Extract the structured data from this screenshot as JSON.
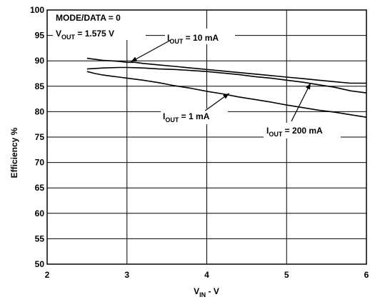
{
  "chart_data": {
    "type": "line",
    "ylabel": "Efficiency %",
    "xlabel": {
      "main": "V",
      "sub": "IN",
      "rest": " - V"
    },
    "xlim": [
      2,
      6
    ],
    "ylim": [
      50,
      100
    ],
    "xticks": [
      2,
      3,
      4,
      5,
      6
    ],
    "yticks": [
      50,
      55,
      60,
      65,
      70,
      75,
      80,
      85,
      90,
      95,
      100
    ],
    "grid": true,
    "series": [
      {
        "name": "I_OUT = 10 mA",
        "x": [
          2.5,
          2.6,
          2.7,
          2.8,
          2.9,
          3.0,
          3.1,
          3.2,
          3.4,
          3.6,
          3.8,
          4.0,
          4.2,
          4.4,
          4.6,
          4.8,
          5.0,
          5.2,
          5.4,
          5.6,
          5.8,
          6.0
        ],
        "y": [
          90.5,
          90.3,
          90.1,
          90.0,
          89.9,
          89.7,
          89.7,
          89.5,
          89.2,
          88.9,
          88.6,
          88.3,
          88.0,
          87.7,
          87.4,
          87.1,
          86.8,
          86.5,
          86.2,
          85.9,
          85.6,
          85.6
        ]
      },
      {
        "name": "I_OUT = 1 mA",
        "x": [
          2.5,
          2.6,
          2.7,
          2.8,
          2.9,
          3.0,
          3.2,
          3.4,
          3.6,
          3.8,
          4.0,
          4.2,
          4.4,
          4.6,
          4.8,
          5.0,
          5.2,
          5.4,
          5.6,
          5.8,
          6.0
        ],
        "y": [
          87.9,
          87.5,
          87.2,
          87.0,
          86.8,
          86.6,
          86.2,
          85.7,
          85.1,
          84.6,
          84.0,
          83.5,
          82.9,
          82.4,
          81.9,
          81.3,
          80.8,
          80.3,
          79.9,
          79.4,
          78.9
        ]
      },
      {
        "name": "I_OUT = 200 mA",
        "x": [
          2.5,
          2.7,
          2.9,
          3.0,
          3.2,
          3.4,
          3.6,
          3.8,
          4.0,
          4.2,
          4.4,
          4.6,
          4.8,
          5.0,
          5.2,
          5.4,
          5.6,
          5.8,
          6.0
        ],
        "y": [
          88.4,
          88.6,
          88.7,
          88.7,
          88.6,
          88.4,
          88.3,
          88.1,
          87.9,
          87.6,
          87.3,
          86.9,
          86.6,
          86.2,
          85.8,
          85.3,
          84.8,
          84.1,
          83.7
        ]
      }
    ],
    "annotations": {
      "condition_line1": "MODE/DATA = 0",
      "condition_line2": {
        "main": "V",
        "sub": "OUT",
        "rest": " = 1.575 V"
      },
      "label_10mA": {
        "main": "I",
        "sub": "OUT",
        "rest": " = 10 mA"
      },
      "label_1mA": {
        "main": "I",
        "sub": "OUT",
        "rest": " = 1 mA"
      },
      "label_200mA": {
        "main": "I",
        "sub": "OUT",
        "rest": " = 200 mA"
      }
    }
  }
}
